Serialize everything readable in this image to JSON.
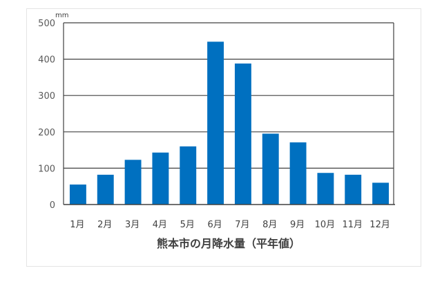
{
  "chart_data": {
    "type": "bar",
    "title": "",
    "xlabel": "熊本市の月降水量（平年値）",
    "ylabel": "",
    "unit": "mm",
    "categories": [
      "1月",
      "2月",
      "3月",
      "4月",
      "5月",
      "6月",
      "7月",
      "8月",
      "9月",
      "10月",
      "11月",
      "12月"
    ],
    "values": [
      55,
      82,
      123,
      143,
      160,
      448,
      388,
      195,
      171,
      87,
      82,
      60
    ],
    "ylim": [
      0,
      500
    ],
    "yticks": [
      0,
      100,
      200,
      300,
      400,
      500
    ],
    "grid": true,
    "legend": "none",
    "bar_color": "#0070c0"
  }
}
